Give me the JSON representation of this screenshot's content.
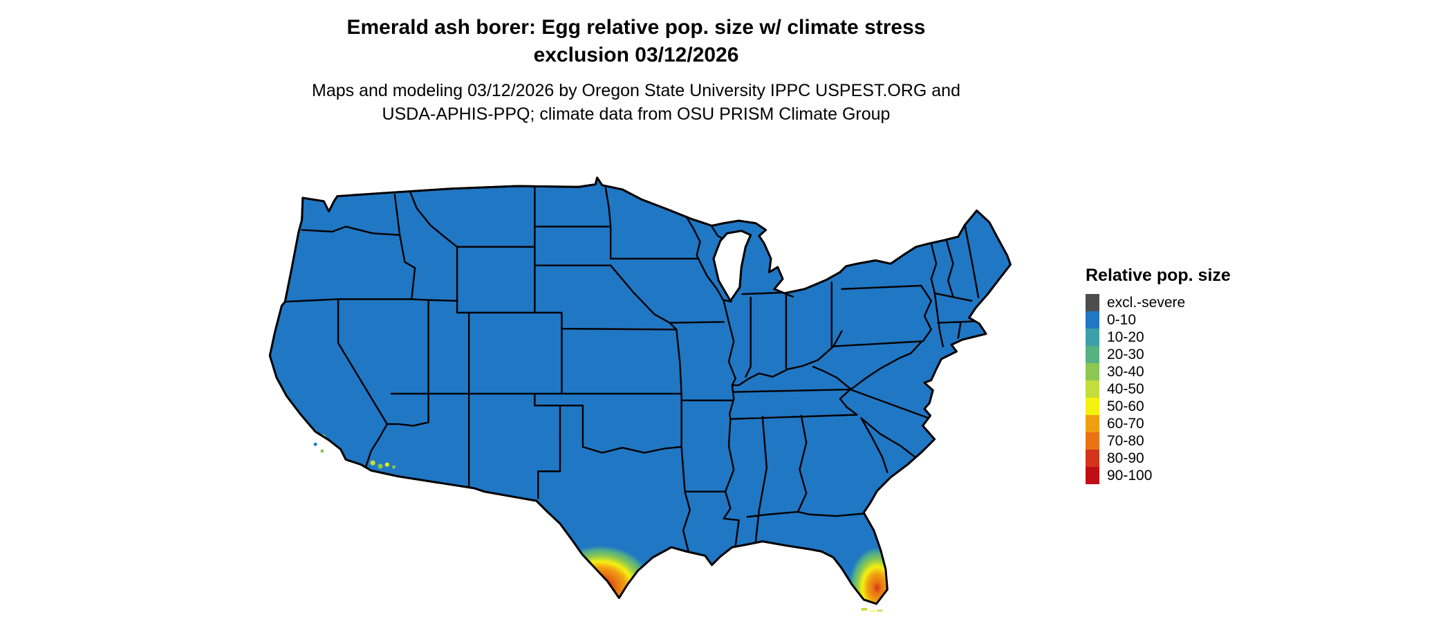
{
  "header": {
    "title_line1": "Emerald ash borer: Egg relative pop. size w/ climate stress",
    "title_line2": "exclusion 03/12/2026",
    "subtitle_line1": "Maps and modeling 03/12/2026 by Oregon State University IPPC USPEST.ORG and",
    "subtitle_line2": "USDA-APHIS-PPQ; climate data from OSU PRISM Climate Group"
  },
  "legend": {
    "title": "Relative pop. size",
    "items": [
      {
        "label": "excl.-severe",
        "color": "#4d4d4d"
      },
      {
        "label": "0-10",
        "color": "#2077c4"
      },
      {
        "label": "10-20",
        "color": "#3d9fa8"
      },
      {
        "label": "20-30",
        "color": "#56b183"
      },
      {
        "label": "30-40",
        "color": "#8cc751"
      },
      {
        "label": "40-50",
        "color": "#c3dd3c"
      },
      {
        "label": "50-60",
        "color": "#f5f10f"
      },
      {
        "label": "60-70",
        "color": "#efa012"
      },
      {
        "label": "70-80",
        "color": "#e87413"
      },
      {
        "label": "80-90",
        "color": "#d4331c"
      },
      {
        "label": "90-100",
        "color": "#bf0e14"
      }
    ]
  },
  "map": {
    "base_color": "#2077c4",
    "border_color": "#000000",
    "background": "#ffffff"
  }
}
